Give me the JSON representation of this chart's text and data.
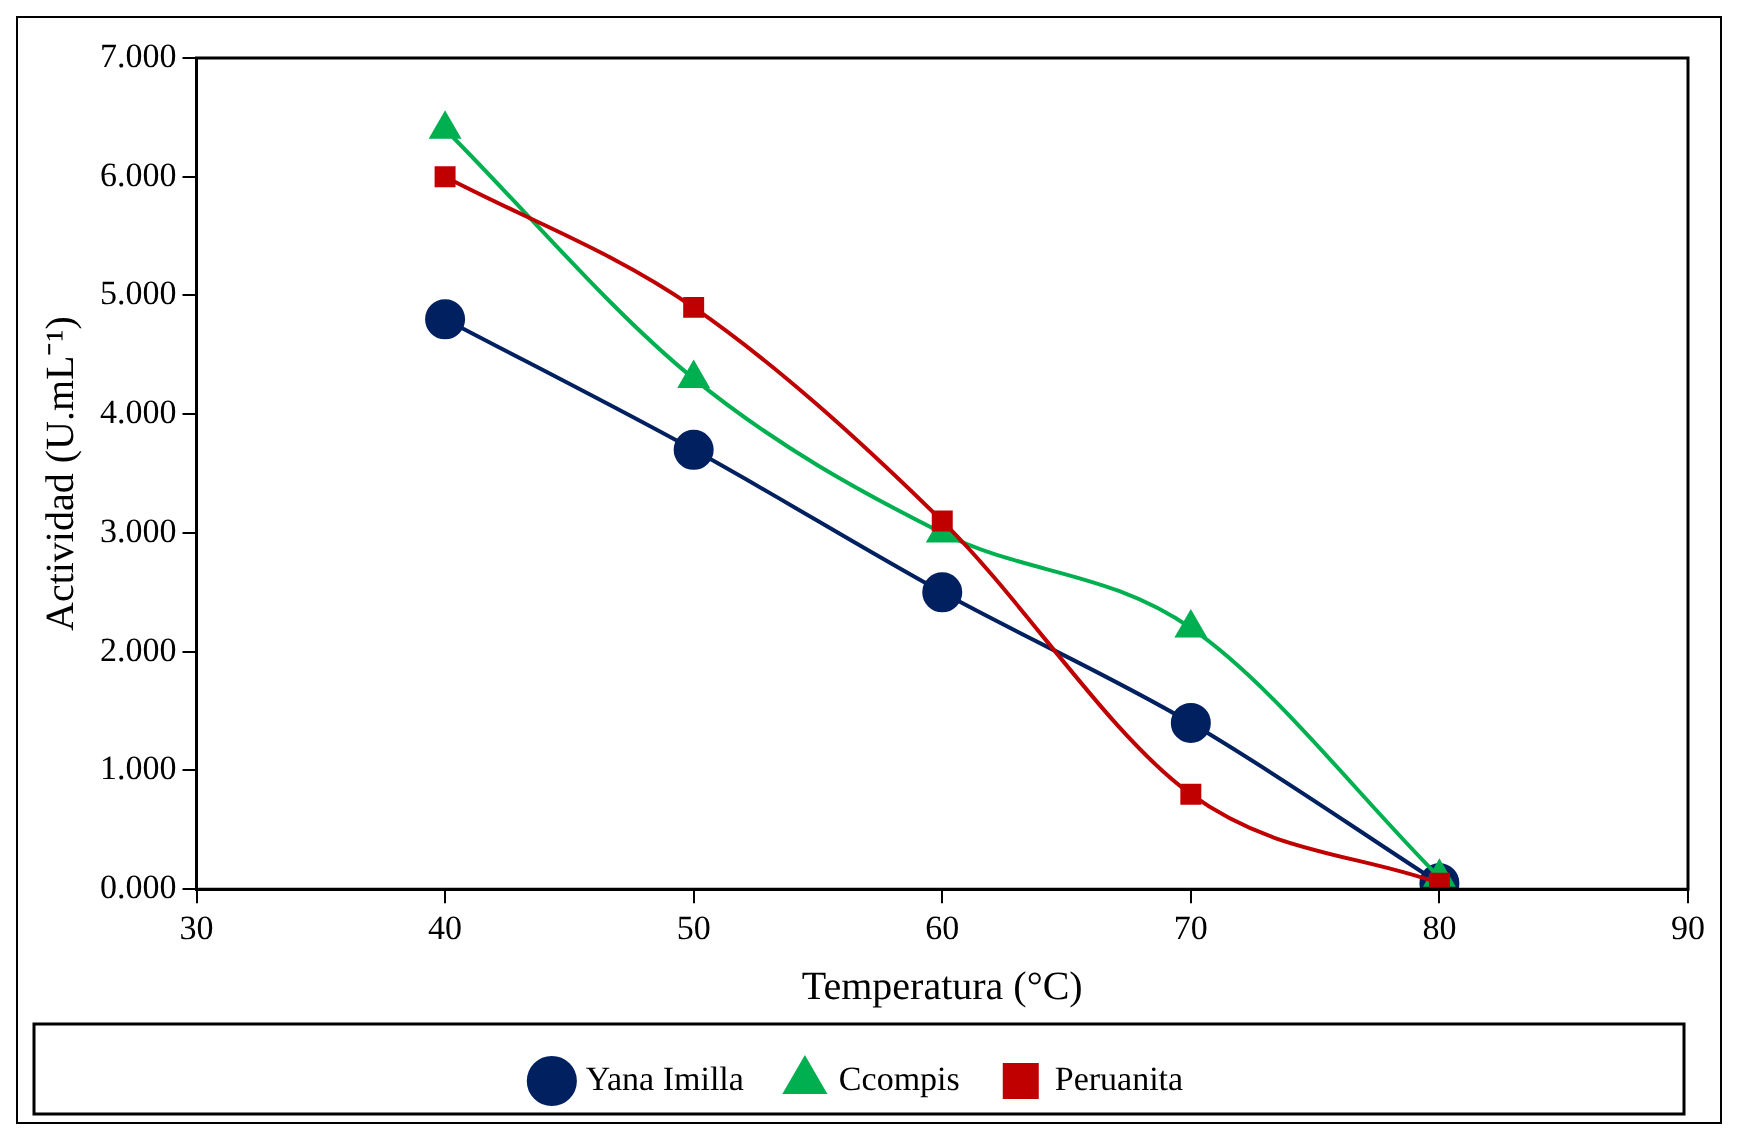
{
  "chart_data": {
    "type": "line",
    "xlabel": "Temperatura (°C)",
    "ylabel": "Actividad (U.mL⁻¹)",
    "x": [
      40,
      50,
      60,
      70,
      80
    ],
    "series": [
      {
        "name": "Yana Imilla",
        "color": "#002060",
        "marker": "circle",
        "values": [
          4.8,
          3.7,
          2.5,
          1.4,
          0.05
        ]
      },
      {
        "name": "Ccompis",
        "color": "#00b050",
        "marker": "triangle",
        "values": [
          6.4,
          4.3,
          3.0,
          2.2,
          0.1
        ]
      },
      {
        "name": "Peruanita",
        "color": "#c00000",
        "marker": "square",
        "values": [
          6.0,
          4.9,
          3.1,
          0.8,
          0.05
        ]
      }
    ],
    "xlim": [
      30,
      90
    ],
    "xticks": [
      30,
      40,
      50,
      60,
      70,
      80,
      90
    ],
    "ylim": [
      0,
      7
    ],
    "yticks": [
      {
        "value": 0,
        "label": "0.000"
      },
      {
        "value": 1,
        "label": "1.000"
      },
      {
        "value": 2,
        "label": "2.000"
      },
      {
        "value": 3,
        "label": "3.000"
      },
      {
        "value": 4,
        "label": "4.000"
      },
      {
        "value": 5,
        "label": "5.000"
      },
      {
        "value": 6,
        "label": "6.000"
      },
      {
        "value": 7,
        "label": "7.000"
      }
    ],
    "grid": false,
    "legend": "bottom",
    "line_style": "solid"
  }
}
